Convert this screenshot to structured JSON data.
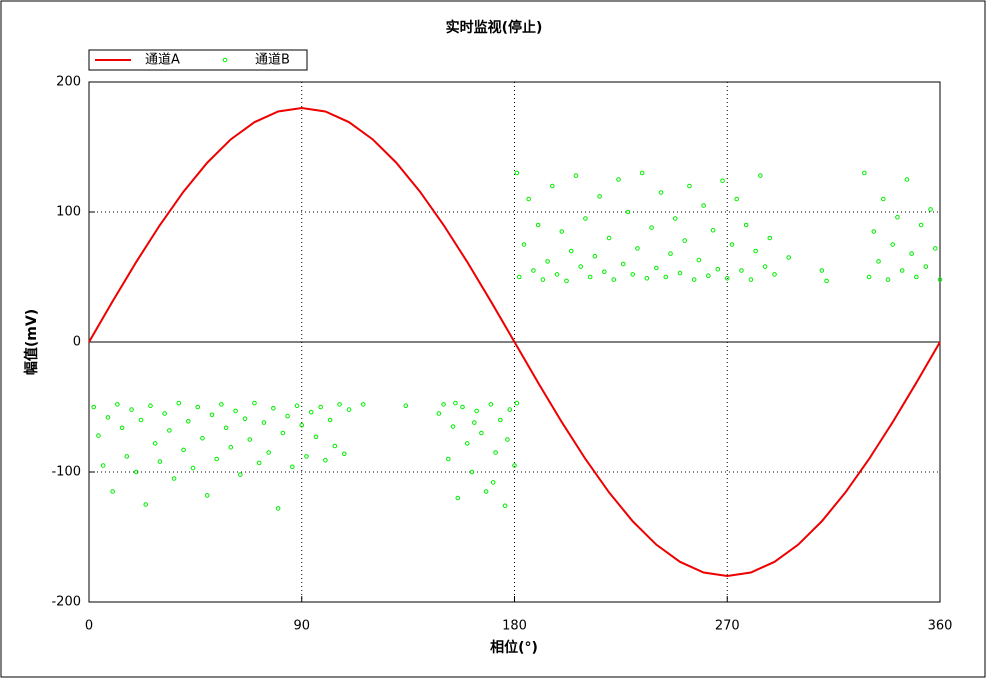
{
  "chart_data": {
    "type": "combo",
    "title": "实时监视(停止)",
    "x_label": "相位(°)",
    "y_label": "幅值(mV)",
    "xlim": [
      0,
      360
    ],
    "xticks": [
      0,
      90,
      180,
      270,
      360
    ],
    "ylim": [
      -200,
      200
    ],
    "yticks": [
      -200,
      -100,
      0,
      100,
      200
    ],
    "grid": true,
    "legend": "top-left",
    "series": [
      {
        "name": "通道A",
        "type": "line",
        "color": "#ee0000",
        "x": [
          0,
          10,
          20,
          30,
          40,
          50,
          60,
          70,
          80,
          90,
          100,
          110,
          120,
          130,
          140,
          150,
          160,
          170,
          180,
          190,
          200,
          210,
          220,
          230,
          240,
          250,
          260,
          270,
          280,
          290,
          300,
          310,
          320,
          330,
          340,
          350,
          360
        ],
        "values": [
          0,
          31.3,
          61.6,
          90,
          115.7,
          137.9,
          155.9,
          169.1,
          177.3,
          180,
          177.3,
          169.1,
          155.9,
          137.9,
          115.7,
          90,
          61.6,
          31.3,
          0,
          -31.3,
          -61.6,
          -90,
          -115.7,
          -137.9,
          -155.9,
          -169.1,
          -177.3,
          -180,
          -177.3,
          -169.1,
          -155.9,
          -137.9,
          -115.7,
          -90,
          -61.6,
          -31.3,
          0
        ]
      },
      {
        "name": "通道B",
        "type": "scatter",
        "color": "#00ee00",
        "x": [
          2,
          4,
          6,
          8,
          10,
          12,
          14,
          16,
          18,
          20,
          22,
          24,
          26,
          28,
          30,
          32,
          34,
          36,
          38,
          40,
          42,
          44,
          46,
          48,
          50,
          52,
          54,
          56,
          58,
          60,
          62,
          64,
          66,
          68,
          70,
          72,
          74,
          76,
          78,
          80,
          82,
          84,
          86,
          88,
          90,
          92,
          94,
          96,
          98,
          100,
          102,
          104,
          106,
          108,
          110,
          116,
          134,
          148,
          150,
          152,
          154,
          156,
          158,
          160,
          162,
          164,
          166,
          168,
          170,
          172,
          174,
          176,
          178,
          180,
          181,
          155,
          163,
          171,
          177,
          181,
          182,
          184,
          186,
          188,
          190,
          192,
          194,
          196,
          198,
          200,
          202,
          204,
          206,
          208,
          210,
          212,
          214,
          216,
          218,
          220,
          222,
          224,
          226,
          228,
          230,
          232,
          234,
          236,
          238,
          240,
          242,
          244,
          246,
          248,
          250,
          252,
          254,
          256,
          258,
          260,
          262,
          264,
          266,
          268,
          270,
          272,
          274,
          276,
          278,
          280,
          282,
          284,
          286,
          288,
          290,
          296,
          310,
          312,
          328,
          330,
          332,
          334,
          336,
          338,
          340,
          342,
          344,
          346,
          348,
          350,
          352,
          354,
          356,
          358,
          360
        ],
        "values": [
          -50,
          -72,
          -95,
          -58,
          -115,
          -48,
          -66,
          -88,
          -52,
          -100,
          -60,
          -125,
          -49,
          -78,
          -92,
          -55,
          -68,
          -105,
          -47,
          -83,
          -61,
          -97,
          -50,
          -74,
          -118,
          -56,
          -90,
          -48,
          -66,
          -81,
          -53,
          -102,
          -59,
          -75,
          -47,
          -93,
          -62,
          -85,
          -51,
          -128,
          -70,
          -57,
          -96,
          -49,
          -64,
          -88,
          -54,
          -73,
          -50,
          -91,
          -60,
          -80,
          -48,
          -86,
          -52,
          -48,
          -49,
          -55,
          -48,
          -90,
          -65,
          -120,
          -50,
          -78,
          -100,
          -53,
          -70,
          -115,
          -48,
          -85,
          -60,
          -126,
          -52,
          -95,
          -47,
          -47,
          -62,
          -108,
          -75,
          130,
          50,
          75,
          110,
          55,
          90,
          48,
          62,
          120,
          52,
          85,
          47,
          70,
          128,
          58,
          95,
          50,
          66,
          112,
          54,
          80,
          48,
          125,
          60,
          100,
          52,
          72,
          130,
          49,
          88,
          57,
          115,
          50,
          68,
          95,
          53,
          78,
          120,
          48,
          63,
          105,
          51,
          86,
          56,
          124,
          49,
          75,
          110,
          55,
          90,
          48,
          70,
          128,
          58,
          80,
          52,
          65,
          55,
          47,
          130,
          50,
          85,
          62,
          110,
          48,
          75,
          96,
          55,
          125,
          68,
          50,
          90,
          58,
          102,
          72,
          48
        ]
      }
    ]
  }
}
